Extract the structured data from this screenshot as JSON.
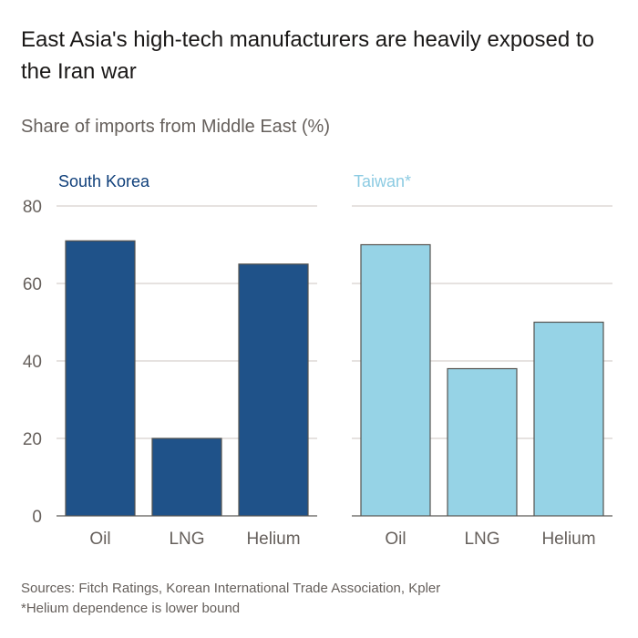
{
  "header": {
    "title": "East Asia's high-tech manufacturers are heavily exposed to the Iran war",
    "subtitle": "Share of imports from Middle East (%)"
  },
  "footer": {
    "sources": "Sources: Fitch Ratings, Korean International Trade Association, Kpler",
    "note": "*Helium dependence is lower bound"
  },
  "colors": {
    "south_korea": "#1f5289",
    "south_korea_label": "#0f3f7a",
    "taiwan": "#96d3e6",
    "taiwan_label": "#8ccbe2",
    "bar_stroke": "#55534f",
    "gridline": "#ccc6c1",
    "axis_text": "#66605c"
  },
  "chart_data": [
    {
      "type": "bar",
      "title": "South Korea",
      "categories": [
        "Oil",
        "LNG",
        "Helium"
      ],
      "values": [
        71,
        20,
        65
      ],
      "ylim": [
        0,
        80
      ],
      "yticks": [
        0,
        20,
        40,
        60,
        80
      ],
      "xlabel": "",
      "ylabel": "Share of imports from Middle East (%)"
    },
    {
      "type": "bar",
      "title": "Taiwan*",
      "categories": [
        "Oil",
        "LNG",
        "Helium"
      ],
      "values": [
        70,
        38,
        50
      ],
      "ylim": [
        0,
        80
      ],
      "yticks": [
        0,
        20,
        40,
        60,
        80
      ],
      "xlabel": "",
      "ylabel": "Share of imports from Middle East (%)"
    }
  ]
}
